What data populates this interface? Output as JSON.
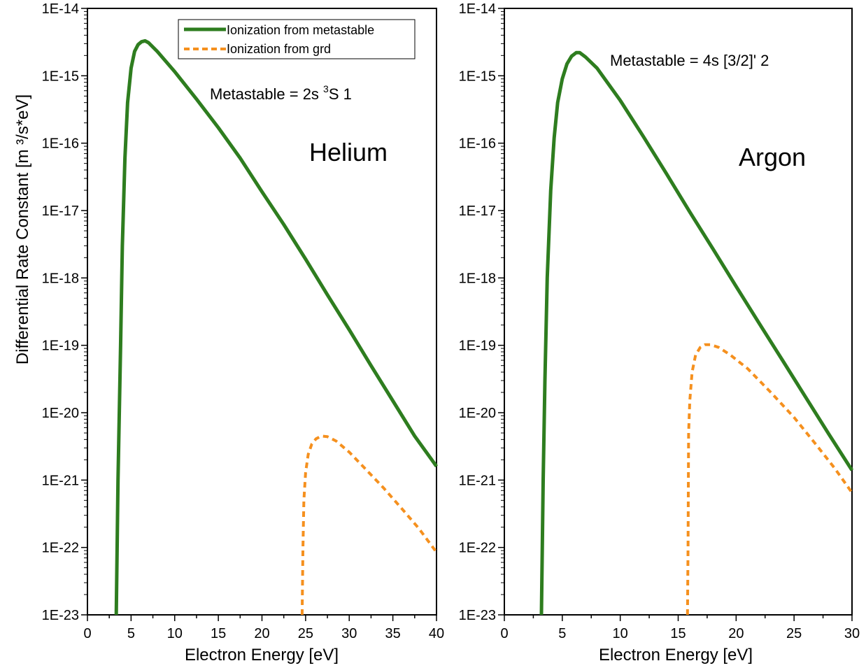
{
  "colors": {
    "metastable": "#2e7d1f",
    "ground": "#f5901e",
    "axis": "#000000"
  },
  "ylabel": "Differential Rate Constant [m ³/s*eV]",
  "legend": {
    "metastable": "Ionization from metastable",
    "ground": "Ionization from grd"
  },
  "chart_data": [
    {
      "type": "line",
      "title": "Helium",
      "annotation": {
        "prefix": "Metastable = 2s  ",
        "sup": "3",
        "suffix": "S 1"
      },
      "xlabel": "Electron Energy [eV]",
      "ylabel": "Differential Rate Constant [m ³/s*eV]",
      "xlim": [
        0,
        40
      ],
      "ylim": [
        1e-23,
        1e-14
      ],
      "yscale": "log",
      "xticks": [
        0,
        5,
        10,
        15,
        20,
        25,
        30,
        35,
        40
      ],
      "xtick_labels": [
        "0",
        "5",
        "10",
        "15",
        "20",
        "25",
        "30",
        "35",
        "40"
      ],
      "yticks": [
        1e-23,
        1e-22,
        1e-21,
        1e-20,
        1e-19,
        1e-18,
        1e-17,
        1e-16,
        1e-15,
        1e-14
      ],
      "ytick_labels": [
        "1E-23",
        "1E-22",
        "1E-21",
        "1E-20",
        "1E-19",
        "1E-18",
        "1E-17",
        "1E-16",
        "1E-15",
        "1E-14"
      ],
      "legend_position": "top-right",
      "series": [
        {
          "name": "Ionization from metastable",
          "style": "solid",
          "x": [
            3.3,
            3.5,
            3.8,
            4.0,
            4.3,
            4.6,
            5.0,
            5.4,
            5.8,
            6.2,
            6.6,
            7.0,
            8.0,
            10.0,
            12.5,
            15.0,
            17.5,
            20.0,
            22.5,
            25.0,
            27.5,
            30.0,
            32.5,
            35.0,
            37.5,
            40.0
          ],
          "y": [
            1e-23,
            1e-21,
            1e-19,
            3e-18,
            6e-17,
            4e-16,
            1.3e-15,
            2.3e-15,
            2.9e-15,
            3.2e-15,
            3.3e-15,
            3.1e-15,
            2.3e-15,
            1.15e-15,
            4.5e-16,
            1.7e-16,
            6e-17,
            1.9e-17,
            6.2e-18,
            1.9e-18,
            5.6e-19,
            1.7e-19,
            5e-20,
            1.5e-20,
            4.5e-21,
            1.6e-21
          ]
        },
        {
          "name": "Ionization from grd",
          "style": "dashed",
          "x": [
            24.6,
            24.7,
            24.8,
            25.0,
            25.3,
            25.7,
            26.2,
            26.8,
            27.5,
            28.5,
            30.0,
            32.0,
            34.0,
            36.0,
            38.0,
            40.0
          ],
          "y": [
            1e-23,
            1e-22,
            5e-22,
            1.3e-21,
            2.4e-21,
            3.4e-21,
            4.1e-21,
            4.5e-21,
            4.4e-21,
            3.8e-21,
            2.6e-21,
            1.4e-21,
            7.5e-22,
            3.8e-22,
            1.9e-22,
            8.5e-23
          ]
        }
      ]
    },
    {
      "type": "line",
      "title": "Argon",
      "annotation": {
        "prefix": "Metastable = 4s [3/2]' 2",
        "sup": "",
        "suffix": ""
      },
      "xlabel": "Electron Energy [eV]",
      "ylabel": "",
      "xlim": [
        0,
        30
      ],
      "ylim": [
        1e-23,
        1e-14
      ],
      "yscale": "log",
      "xticks": [
        0,
        5,
        10,
        15,
        20,
        25,
        30
      ],
      "xtick_labels": [
        "0",
        "5",
        "10",
        "15",
        "20",
        "25",
        "30"
      ],
      "yticks": [
        1e-23,
        1e-22,
        1e-21,
        1e-20,
        1e-19,
        1e-18,
        1e-17,
        1e-16,
        1e-15,
        1e-14
      ],
      "ytick_labels": [
        "1E-23",
        "1E-22",
        "1E-21",
        "1E-20",
        "1E-19",
        "1E-18",
        "1E-17",
        "1E-16",
        "1E-15",
        "1E-14"
      ],
      "series": [
        {
          "name": "Ionization from metastable",
          "style": "solid",
          "x": [
            3.2,
            3.35,
            3.5,
            3.7,
            4.0,
            4.3,
            4.6,
            5.0,
            5.4,
            5.8,
            6.2,
            6.5,
            7.0,
            8.0,
            10.0,
            12.0,
            14.0,
            16.0,
            18.0,
            20.0,
            22.0,
            24.0,
            26.0,
            28.0,
            30.0
          ],
          "y": [
            1e-23,
            1e-21,
            3e-20,
            1e-18,
            2e-17,
            1.2e-16,
            4e-16,
            9e-16,
            1.5e-15,
            1.95e-15,
            2.2e-15,
            2.2e-15,
            1.9e-15,
            1.3e-15,
            4.3e-16,
            1.25e-16,
            3.5e-17,
            9.5e-18,
            2.7e-18,
            7.5e-19,
            2.1e-19,
            6e-20,
            1.7e-20,
            4.8e-21,
            1.4e-21
          ]
        },
        {
          "name": "Ionization from grd",
          "style": "dashed",
          "x": [
            15.8,
            15.85,
            15.9,
            16.0,
            16.2,
            16.5,
            16.9,
            17.3,
            17.8,
            18.5,
            19.5,
            21.0,
            23.0,
            25.0,
            27.0,
            28.5,
            30.0
          ],
          "y": [
            1e-23,
            1e-22,
            5e-21,
            1.5e-20,
            4e-20,
            7.2e-20,
            9.3e-20,
            1.02e-19,
            1.02e-19,
            9.3e-20,
            7.2e-20,
            4.5e-20,
            2e-20,
            8.5e-21,
            3.2e-21,
            1.5e-21,
            6.5e-22
          ]
        }
      ]
    }
  ]
}
